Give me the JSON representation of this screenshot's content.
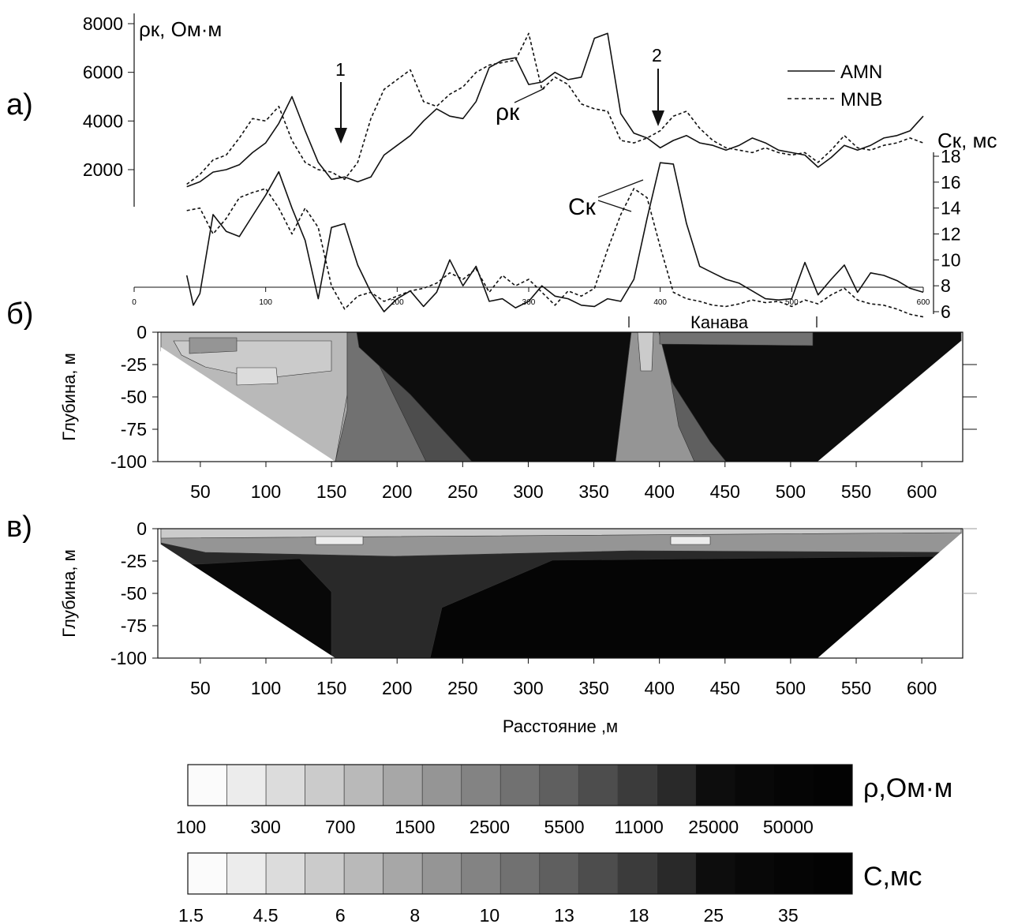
{
  "panels": {
    "a": "а)",
    "b": "б)",
    "c": "в)"
  },
  "chart_data": [
    {
      "type": "line",
      "panel": "а)",
      "ylabel_left": "ρк, Ом·м",
      "ylabel_right": "Cк, мс",
      "left_axis": {
        "ticks": [
          2000,
          4000,
          6000,
          8000
        ],
        "ylim": [
          0,
          8000
        ]
      },
      "right_axis": {
        "ticks": [
          6,
          8,
          10,
          12,
          14,
          16,
          18
        ],
        "ylim": [
          6,
          18
        ]
      },
      "x_ticks": [
        0,
        100,
        200,
        300,
        400,
        500,
        600
      ],
      "xlim": [
        0,
        600
      ],
      "legend": {
        "position": "top-right",
        "entries": [
          {
            "label": "AMN",
            "style": "solid"
          },
          {
            "label": "MNB",
            "style": "dashed"
          }
        ]
      },
      "annotations": [
        "1",
        "2",
        "ρк",
        "Cк"
      ],
      "arrows_at_x": [
        155,
        400
      ],
      "series": [
        {
          "name": "AMN",
          "quantity": "ρк",
          "axis": "left",
          "style": "solid",
          "x": [
            40,
            50,
            60,
            70,
            80,
            90,
            100,
            110,
            120,
            130,
            140,
            150,
            160,
            170,
            180,
            190,
            200,
            210,
            220,
            230,
            240,
            250,
            260,
            270,
            280,
            290,
            300,
            310,
            320,
            330,
            340,
            350,
            360,
            370,
            380,
            390,
            400,
            410,
            420,
            430,
            440,
            450,
            460,
            470,
            480,
            490,
            500,
            510,
            520,
            530,
            540,
            550,
            560,
            570,
            580,
            590,
            600
          ],
          "y": [
            1300,
            1500,
            1900,
            2000,
            2200,
            2700,
            3100,
            3900,
            5000,
            3600,
            2300,
            1600,
            1700,
            1500,
            1700,
            2600,
            3000,
            3400,
            4000,
            4500,
            4200,
            4100,
            4800,
            6200,
            6500,
            6600,
            5500,
            5600,
            6000,
            5700,
            5800,
            7400,
            7600,
            4300,
            3500,
            3300,
            2900,
            3200,
            3400,
            3100,
            3000,
            2800,
            3000,
            3300,
            3100,
            2800,
            2700,
            2600,
            2100,
            2500,
            3000,
            2800,
            3000,
            3300,
            3400,
            3600,
            4200
          ]
        },
        {
          "name": "MNB",
          "quantity": "ρк",
          "axis": "left",
          "style": "dashed",
          "x": [
            40,
            50,
            60,
            70,
            80,
            90,
            100,
            110,
            120,
            130,
            140,
            150,
            160,
            170,
            180,
            190,
            200,
            210,
            220,
            230,
            240,
            250,
            260,
            270,
            280,
            290,
            300,
            310,
            320,
            330,
            340,
            350,
            360,
            370,
            380,
            390,
            400,
            410,
            420,
            430,
            440,
            450,
            460,
            470,
            480,
            490,
            500,
            510,
            520,
            530,
            540,
            550,
            560,
            570,
            580,
            590,
            600
          ],
          "y": [
            1400,
            1800,
            2400,
            2600,
            3300,
            4100,
            4000,
            4600,
            3200,
            2300,
            2000,
            1900,
            1600,
            2300,
            4100,
            5300,
            5700,
            6100,
            4800,
            4600,
            5100,
            5400,
            6000,
            6300,
            6400,
            6500,
            7600,
            5300,
            5800,
            5500,
            4700,
            4500,
            4400,
            3200,
            3100,
            3300,
            3600,
            4200,
            4400,
            3700,
            3200,
            2900,
            2800,
            2700,
            2900,
            2700,
            2600,
            2700,
            2300,
            2800,
            3400,
            2900,
            2800,
            3000,
            3100,
            3300,
            3100
          ]
        },
        {
          "name": "AMN",
          "quantity": "Cк",
          "axis": "right",
          "style": "solid",
          "x": [
            40,
            45,
            50,
            60,
            70,
            80,
            90,
            100,
            110,
            120,
            130,
            140,
            150,
            160,
            170,
            180,
            190,
            200,
            210,
            220,
            230,
            240,
            250,
            260,
            270,
            280,
            290,
            300,
            310,
            320,
            330,
            340,
            350,
            360,
            370,
            380,
            390,
            400,
            410,
            420,
            430,
            440,
            450,
            460,
            470,
            480,
            490,
            500,
            510,
            520,
            530,
            540,
            550,
            560,
            570,
            580,
            590,
            600
          ],
          "y": [
            8.8,
            6.5,
            7.4,
            13.5,
            12.2,
            11.8,
            13.4,
            15.0,
            16.8,
            14.0,
            11.5,
            7.0,
            12.5,
            12.8,
            9.6,
            7.5,
            6.0,
            7.0,
            7.6,
            6.4,
            7.5,
            10.0,
            8.0,
            9.5,
            6.8,
            7.0,
            6.3,
            6.8,
            8.0,
            7.2,
            7.0,
            6.5,
            6.4,
            7.0,
            6.8,
            8.5,
            13.2,
            17.5,
            17.4,
            12.8,
            9.5,
            9.0,
            8.5,
            8.2,
            7.6,
            7.0,
            6.9,
            7.0,
            9.8,
            7.3,
            8.5,
            9.6,
            7.5,
            9.0,
            8.8,
            8.4,
            7.8,
            7.5
          ]
        },
        {
          "name": "MNB",
          "quantity": "Cк",
          "axis": "right",
          "style": "dashed",
          "x": [
            40,
            50,
            60,
            70,
            80,
            90,
            100,
            110,
            120,
            130,
            140,
            150,
            160,
            170,
            180,
            190,
            200,
            210,
            220,
            230,
            240,
            250,
            260,
            270,
            280,
            290,
            300,
            310,
            320,
            330,
            340,
            350,
            360,
            370,
            380,
            390,
            400,
            410,
            420,
            430,
            440,
            450,
            460,
            470,
            480,
            490,
            500,
            510,
            520,
            530,
            540,
            550,
            560,
            570,
            580,
            590,
            600
          ],
          "y": [
            13.8,
            14.0,
            12.0,
            13.2,
            14.8,
            15.2,
            15.5,
            14.0,
            12.0,
            14.0,
            12.5,
            8.0,
            6.2,
            7.2,
            7.5,
            6.8,
            7.2,
            7.6,
            7.8,
            8.2,
            9.0,
            8.5,
            9.3,
            7.5,
            8.8,
            8.0,
            8.5,
            7.5,
            6.5,
            7.6,
            7.2,
            7.8,
            10.8,
            13.5,
            15.5,
            14.8,
            11.0,
            7.5,
            7.0,
            6.8,
            6.5,
            6.4,
            6.6,
            6.9,
            6.7,
            6.8,
            6.4,
            6.9,
            6.6,
            7.3,
            7.8,
            6.9,
            6.6,
            6.5,
            6.2,
            5.8,
            5.6
          ]
        }
      ]
    },
    {
      "type": "heatmap",
      "panel": "б)",
      "ylabel": "Глубина, м",
      "y_ticks": [
        "0",
        "-25",
        "-50",
        "-75",
        "-100"
      ],
      "ylim": [
        -100,
        0
      ],
      "x_ticks": [
        "50",
        "100",
        "150",
        "200",
        "250",
        "300",
        "350",
        "400",
        "450",
        "500",
        "550",
        "600"
      ],
      "xlim": [
        20,
        630
      ],
      "quantity": "ρ",
      "annotation": "Канава",
      "annotation_range": [
        375,
        520
      ]
    },
    {
      "type": "heatmap",
      "panel": "в)",
      "ylabel": "Глубина, м",
      "xlabel": "Расстояние ,м",
      "y_ticks": [
        "0",
        "-25",
        "-50",
        "-75",
        "-100"
      ],
      "ylim": [
        -100,
        0
      ],
      "x_ticks": [
        "50",
        "100",
        "150",
        "200",
        "250",
        "300",
        "350",
        "400",
        "450",
        "500",
        "550",
        "600"
      ],
      "xlim": [
        20,
        630
      ],
      "quantity": "C"
    }
  ],
  "scale_rho": {
    "label": "ρ,Ом·м",
    "tick_labels": [
      "100",
      "300",
      "700",
      "1500",
      "2500",
      "5500",
      "11000",
      "25000",
      "50000"
    ]
  },
  "scale_c": {
    "label": "C,мс",
    "tick_labels": [
      "1.5",
      "4.5",
      "6",
      "8",
      "10",
      "13",
      "18",
      "25",
      "35"
    ]
  },
  "colors": {
    "ink": "#111111",
    "grays": [
      "#fbfbfb",
      "#ececec",
      "#dcdcdc",
      "#cbcbcb",
      "#b9b9b9",
      "#a7a7a7",
      "#959595",
      "#838383",
      "#717171",
      "#5f5f5f",
      "#4d4d4d",
      "#3b3b3b",
      "#292929",
      "#0d0d0d",
      "#080808",
      "#050505",
      "#030303"
    ]
  }
}
